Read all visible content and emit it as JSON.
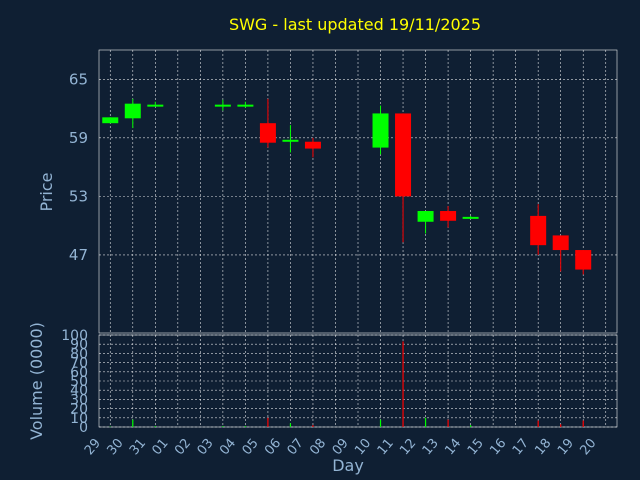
{
  "chart_data": {
    "type": "candlestick",
    "title": "SWG - last updated 19/11/2025",
    "ylabel": "Price",
    "volume_label": "Volume (0000)",
    "xlabel": "Day",
    "price_ticks": [
      47,
      53,
      59,
      65
    ],
    "price_range": [
      39,
      68
    ],
    "volume_ticks": [
      0,
      10,
      20,
      30,
      40,
      50,
      60,
      70,
      80,
      90,
      100
    ],
    "volume_range": [
      0,
      100
    ],
    "grid": true,
    "days": [
      "29",
      "30",
      "31",
      "01",
      "02",
      "03",
      "04",
      "05",
      "06",
      "07",
      "08",
      "09",
      "10",
      "11",
      "12",
      "13",
      "14",
      "15",
      "16",
      "17",
      "18",
      "19",
      "20"
    ],
    "up_color": "#00ff00",
    "down_color": "#ff0000",
    "candles": [
      {
        "day": "29",
        "open": 60.5,
        "close": 61.1,
        "high": 61.1,
        "low": 60.5
      },
      {
        "day": "30",
        "open": 61.0,
        "close": 62.5,
        "high": 63.0,
        "low": 60.0
      },
      {
        "day": "31",
        "open": 62.3,
        "close": 62.4,
        "high": 62.7,
        "low": 62.2
      },
      {
        "day": "03",
        "open": 62.3,
        "close": 62.4,
        "high": 62.9,
        "low": 61.8
      },
      {
        "day": "04",
        "open": 62.3,
        "close": 62.4,
        "high": 62.7,
        "low": 62.1
      },
      {
        "day": "05",
        "open": 60.5,
        "close": 58.5,
        "high": 63.0,
        "low": 58.0
      },
      {
        "day": "06",
        "open": 58.6,
        "close": 58.8,
        "high": 60.3,
        "low": 57.5
      },
      {
        "day": "07",
        "open": 58.6,
        "close": 57.9,
        "high": 59.0,
        "low": 57.0
      },
      {
        "day": "10",
        "open": 58.0,
        "close": 61.5,
        "high": 62.3,
        "low": 57.3
      },
      {
        "day": "11",
        "open": 61.5,
        "close": 53.0,
        "high": 61.5,
        "low": 48.3
      },
      {
        "day": "12",
        "open": 50.4,
        "close": 51.5,
        "high": 51.5,
        "low": 49.2
      },
      {
        "day": "13",
        "open": 51.5,
        "close": 50.5,
        "high": 52.0,
        "low": 49.8
      },
      {
        "day": "14",
        "open": 50.8,
        "close": 50.9,
        "high": 51.0,
        "low": 50.7
      },
      {
        "day": "17",
        "open": 51.0,
        "close": 48.0,
        "high": 52.2,
        "low": 47.0
      },
      {
        "day": "18",
        "open": 49.0,
        "close": 47.5,
        "high": 49.0,
        "low": 45.3
      },
      {
        "day": "19",
        "open": 47.5,
        "close": 45.5,
        "high": 47.5,
        "low": 45.0
      }
    ],
    "volumes": [
      {
        "day": "29",
        "value": 0.5,
        "color": "#00ff00"
      },
      {
        "day": "30",
        "value": 8,
        "color": "#00ff00"
      },
      {
        "day": "31",
        "value": 1,
        "color": "#00ff00"
      },
      {
        "day": "03",
        "value": 1,
        "color": "#00ff00"
      },
      {
        "day": "04",
        "value": 1,
        "color": "#00ff00"
      },
      {
        "day": "05",
        "value": 10,
        "color": "#ff0000"
      },
      {
        "day": "06",
        "value": 4,
        "color": "#00ff00"
      },
      {
        "day": "07",
        "value": 2,
        "color": "#ff0000"
      },
      {
        "day": "10",
        "value": 8,
        "color": "#00ff00"
      },
      {
        "day": "11",
        "value": 93,
        "color": "#ff0000"
      },
      {
        "day": "12",
        "value": 10,
        "color": "#00ff00"
      },
      {
        "day": "13",
        "value": 8,
        "color": "#ff0000"
      },
      {
        "day": "14",
        "value": 2,
        "color": "#00ff00"
      },
      {
        "day": "17",
        "value": 7,
        "color": "#ff0000"
      },
      {
        "day": "18",
        "value": 3,
        "color": "#ff0000"
      },
      {
        "day": "19",
        "value": 7,
        "color": "#ff0000"
      }
    ]
  }
}
